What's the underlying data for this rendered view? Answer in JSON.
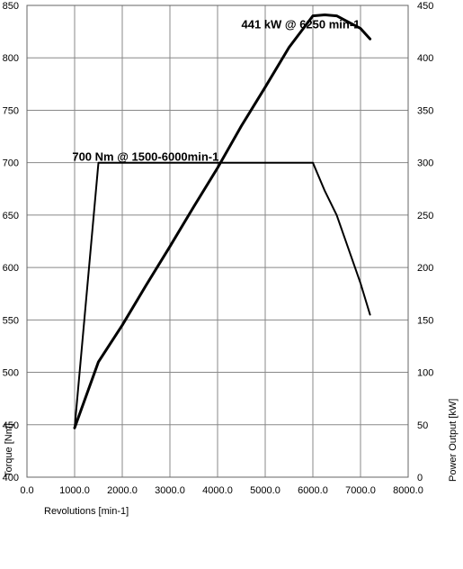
{
  "chart_data": {
    "type": "line",
    "xlabel": "Revolutions [min-1]",
    "ylabel": "Torque [Nm]",
    "y2label": "Power Output [kW]",
    "xlim": [
      0,
      8000
    ],
    "ylim": [
      400,
      850
    ],
    "y2lim": [
      0,
      450
    ],
    "grid": true,
    "x_ticks": [
      "0.0",
      "1000.0",
      "2000.0",
      "3000.0",
      "4000.0",
      "5000.0",
      "6000.0",
      "7000.0",
      "8000.0"
    ],
    "y_ticks": [
      "400",
      "450",
      "500",
      "550",
      "600",
      "650",
      "700",
      "750",
      "800",
      "850"
    ],
    "y2_ticks": [
      "0",
      "50",
      "100",
      "150",
      "200",
      "250",
      "300",
      "350",
      "400",
      "450"
    ],
    "series": [
      {
        "axis": "left",
        "x": [
          1000,
          1500,
          6000,
          6250,
          6500,
          7000,
          7200
        ],
        "y": [
          447,
          700,
          700,
          673,
          650,
          585,
          555
        ]
      },
      {
        "axis": "right",
        "x": [
          1000,
          1500,
          2000,
          2500,
          3000,
          3500,
          4000,
          4500,
          5000,
          5500,
          6000,
          6250,
          6500,
          7000,
          7200
        ],
        "y": [
          47,
          110,
          145,
          183,
          220,
          258,
          295,
          335,
          372,
          410,
          440,
          441,
          440,
          428,
          418
        ]
      }
    ],
    "annotations": [
      {
        "text": "441 kW @ 6250 min-1",
        "x": 4500,
        "y_axis": "left",
        "y": 828
      },
      {
        "text": "700 Nm @ 1500-6000min-1",
        "x": 950,
        "y_axis": "left",
        "y": 702
      }
    ]
  }
}
